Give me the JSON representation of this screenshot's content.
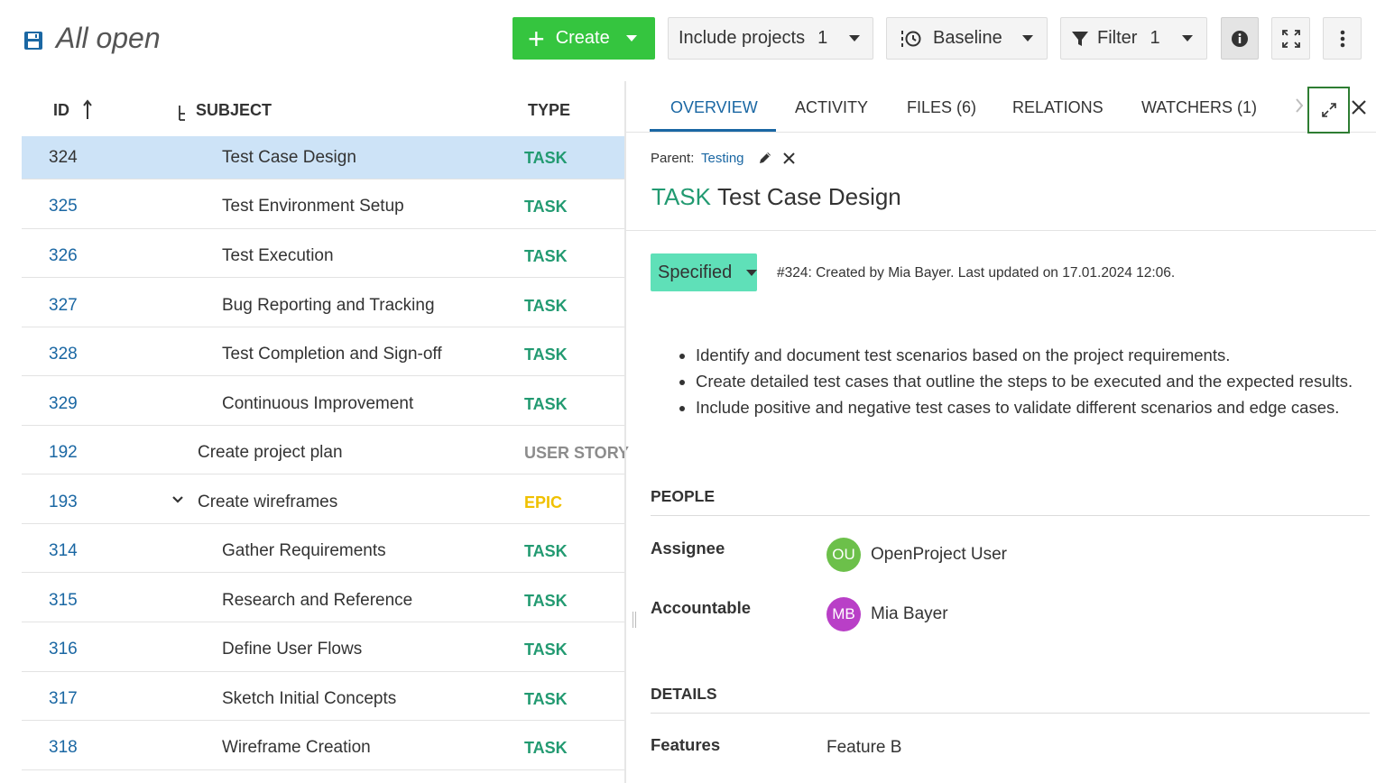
{
  "header": {
    "title": "All open",
    "create_label": "Create",
    "include_projects_label": "Include projects",
    "include_projects_count": "1",
    "baseline_label": "Baseline",
    "filter_label": "Filter",
    "filter_count": "1"
  },
  "table": {
    "columns": {
      "id": "ID",
      "subject": "SUBJECT",
      "type": "TYPE"
    },
    "rows": [
      {
        "id": "324",
        "subject": "Test Case Design",
        "type": "TASK"
      },
      {
        "id": "325",
        "subject": "Test Environment Setup",
        "type": "TASK"
      },
      {
        "id": "326",
        "subject": "Test Execution",
        "type": "TASK"
      },
      {
        "id": "327",
        "subject": "Bug Reporting and Tracking",
        "type": "TASK"
      },
      {
        "id": "328",
        "subject": "Test Completion and Sign-off",
        "type": "TASK"
      },
      {
        "id": "329",
        "subject": "Continuous Improvement",
        "type": "TASK"
      },
      {
        "id": "192",
        "subject": "Create project plan",
        "type": "USER STORY"
      },
      {
        "id": "193",
        "subject": "Create wireframes",
        "type": "EPIC"
      },
      {
        "id": "314",
        "subject": "Gather Requirements",
        "type": "TASK"
      },
      {
        "id": "315",
        "subject": "Research and Reference",
        "type": "TASK"
      },
      {
        "id": "316",
        "subject": "Define User Flows",
        "type": "TASK"
      },
      {
        "id": "317",
        "subject": "Sketch Initial Concepts",
        "type": "TASK"
      },
      {
        "id": "318",
        "subject": "Wireframe Creation",
        "type": "TASK"
      }
    ]
  },
  "details": {
    "tabs": [
      "OVERVIEW",
      "ACTIVITY",
      "FILES (6)",
      "RELATIONS",
      "WATCHERS (1)"
    ],
    "parent_label": "Parent:",
    "parent_value": "Testing",
    "type": "TASK",
    "title": "Test Case Design",
    "status": "Specified",
    "meta": "#324: Created by Mia Bayer. Last updated on 17.01.2024 12:06.",
    "description": [
      "Identify and document test scenarios based on the project requirements.",
      "Create detailed test cases that outline the steps to be executed and the expected results.",
      "Include positive and negative test cases to validate different scenarios and edge cases."
    ],
    "people_title": "PEOPLE",
    "assignee_label": "Assignee",
    "assignee_initials": "OU",
    "assignee_name": "OpenProject User",
    "accountable_label": "Accountable",
    "accountable_initials": "MB",
    "accountable_name": "Mia Bayer",
    "details_title": "DETAILS",
    "features_label": "Features",
    "features_value": "Feature B"
  },
  "colors": {
    "type_task": "#229a71",
    "type_user_story": "#8c8c8c",
    "type_epic": "#f0c000",
    "link": "#1a67a3",
    "create_button": "#35c53f",
    "status_specified": "#5fe0b8",
    "avatar_ou": "#6cc04a",
    "avatar_mb": "#b93fc7",
    "selected_row": "#cde3f7"
  }
}
